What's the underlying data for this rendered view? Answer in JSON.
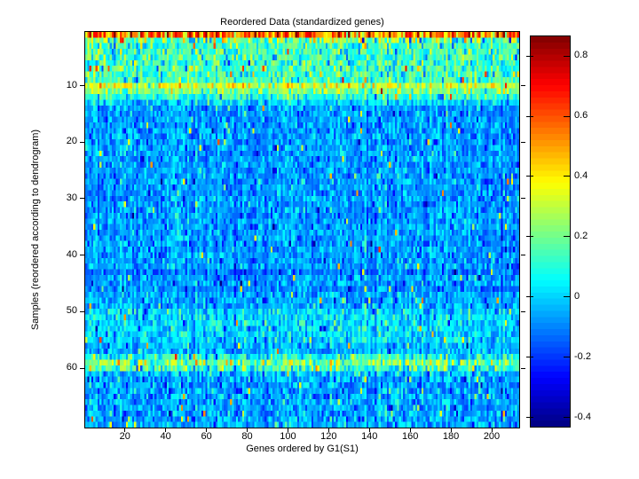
{
  "figure": {
    "background": "#ffffff",
    "axis_color": "#000000",
    "text_color": "#000000"
  },
  "chart_data": {
    "type": "heatmap",
    "title": "Reordered Data (standardized genes)",
    "xlabel": "Genes ordered by G1(S1)",
    "ylabel": "Samples (reordered according to dendrogram)",
    "colormap": "jet",
    "grid": false,
    "n_cols": 213,
    "n_rows": 70,
    "x_range": [
      1,
      213
    ],
    "y_range": [
      1,
      70
    ],
    "clim": [
      -0.43,
      0.865
    ],
    "x_ticks": [
      20,
      40,
      60,
      80,
      100,
      120,
      140,
      160,
      180,
      200
    ],
    "y_ticks": [
      10,
      20,
      30,
      40,
      50,
      60
    ],
    "colorbar": {
      "position": "right",
      "tick_values": [
        0.8,
        0.6,
        0.4,
        0.2,
        0,
        -0.2,
        -0.4
      ],
      "tick_labels": [
        "0.8",
        "0.6",
        "0.4",
        "0.2",
        "0",
        "-0.2",
        "-0.4"
      ],
      "levels": 64
    },
    "row_bands": [
      {
        "rows": [
          1,
          1
        ],
        "mean": 0.55,
        "std": 0.16
      },
      {
        "rows": [
          2,
          2
        ],
        "mean": 0.2,
        "std": 0.16
      },
      {
        "rows": [
          3,
          9
        ],
        "mean": 0.13,
        "std": 0.1
      },
      {
        "rows": [
          10,
          10
        ],
        "mean": 0.32,
        "std": 0.1
      },
      {
        "rows": [
          11,
          11
        ],
        "mean": 0.21,
        "std": 0.09
      },
      {
        "rows": [
          12,
          12
        ],
        "mean": 0.1,
        "std": 0.09
      },
      {
        "rows": [
          13,
          13
        ],
        "mean": 0.0,
        "std": 0.07
      },
      {
        "rows": [
          14,
          42
        ],
        "mean": -0.07,
        "std": 0.07
      },
      {
        "rows": [
          43,
          43
        ],
        "mean": -0.11,
        "std": 0.06
      },
      {
        "rows": [
          44,
          45
        ],
        "mean": -0.07,
        "std": 0.07
      },
      {
        "rows": [
          46,
          46
        ],
        "mean": -0.1,
        "std": 0.06
      },
      {
        "rows": [
          47,
          49
        ],
        "mean": -0.05,
        "std": 0.07
      },
      {
        "rows": [
          50,
          55
        ],
        "mean": 0.01,
        "std": 0.08
      },
      {
        "rows": [
          56,
          57
        ],
        "mean": -0.04,
        "std": 0.07
      },
      {
        "rows": [
          58,
          58
        ],
        "mean": 0.07,
        "std": 0.1
      },
      {
        "rows": [
          59,
          59
        ],
        "mean": 0.2,
        "std": 0.12
      },
      {
        "rows": [
          60,
          60
        ],
        "mean": 0.13,
        "std": 0.11
      },
      {
        "rows": [
          61,
          61
        ],
        "mean": -0.02,
        "std": 0.09
      },
      {
        "rows": [
          62,
          70
        ],
        "mean": -0.06,
        "std": 0.08
      }
    ],
    "outlier_high": {
      "prob": 0.012,
      "delta": 0.42
    },
    "outlier_low": {
      "prob": 0.012,
      "delta": -0.2
    },
    "col_effect_std": 0.03,
    "col_effects": [
      {
        "col": 205,
        "delta": -0.09
      },
      {
        "col": 178,
        "delta": 0.05
      },
      {
        "col": 82,
        "delta": -0.07
      }
    ],
    "seed": 20
  }
}
